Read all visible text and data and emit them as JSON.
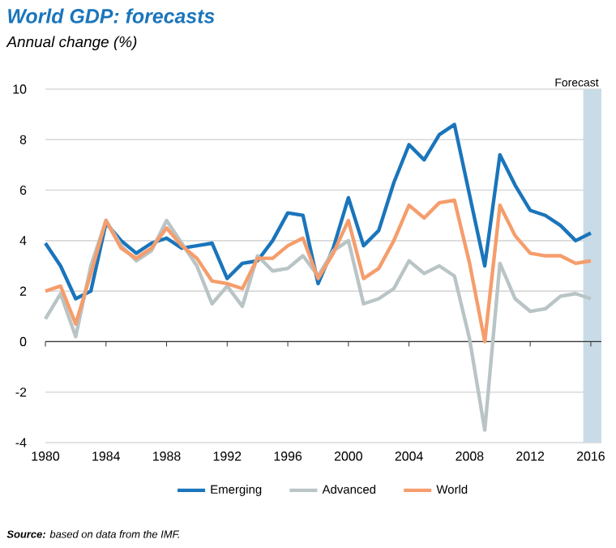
{
  "chart_data": {
    "type": "line",
    "title": "World GDP: forecasts",
    "subtitle": "Annual change (%)",
    "x": [
      1980,
      1981,
      1982,
      1983,
      1984,
      1985,
      1986,
      1987,
      1988,
      1989,
      1990,
      1991,
      1992,
      1993,
      1994,
      1995,
      1996,
      1997,
      1998,
      1999,
      2000,
      2001,
      2002,
      2003,
      2004,
      2005,
      2006,
      2007,
      2008,
      2009,
      2010,
      2011,
      2012,
      2013,
      2014,
      2015,
      2016
    ],
    "series": [
      {
        "name": "Emerging",
        "color": "#1a75bb",
        "values": [
          3.9,
          3.0,
          1.7,
          2.0,
          4.7,
          4.0,
          3.5,
          3.9,
          4.1,
          3.7,
          3.8,
          3.9,
          2.5,
          3.1,
          3.2,
          4.0,
          5.1,
          5.0,
          2.3,
          3.7,
          5.7,
          3.8,
          4.4,
          6.3,
          7.8,
          7.2,
          8.2,
          8.6,
          5.8,
          3.0,
          7.4,
          6.2,
          5.2,
          5.0,
          4.6,
          4.0,
          4.3
        ]
      },
      {
        "name": "Advanced",
        "color": "#b9c4c6",
        "values": [
          0.9,
          1.9,
          0.2,
          3.0,
          4.8,
          3.8,
          3.2,
          3.6,
          4.8,
          3.9,
          3.0,
          1.5,
          2.2,
          1.4,
          3.4,
          2.8,
          2.9,
          3.4,
          2.6,
          3.6,
          4.0,
          1.5,
          1.7,
          2.1,
          3.2,
          2.7,
          3.0,
          2.6,
          0.1,
          -3.5,
          3.1,
          1.7,
          1.2,
          1.3,
          1.8,
          1.9,
          1.7
        ]
      },
      {
        "name": "World",
        "color": "#f59d6c",
        "values": [
          2.0,
          2.2,
          0.7,
          2.7,
          4.8,
          3.7,
          3.3,
          3.7,
          4.5,
          3.8,
          3.3,
          2.4,
          2.3,
          2.1,
          3.3,
          3.3,
          3.8,
          4.1,
          2.5,
          3.5,
          4.8,
          2.5,
          2.9,
          4.0,
          5.4,
          4.9,
          5.5,
          5.6,
          3.1,
          0.0,
          5.4,
          4.2,
          3.5,
          3.4,
          3.4,
          3.1,
          3.2
        ]
      }
    ],
    "xlim": [
      1980,
      2016.7
    ],
    "ylim": [
      -4,
      10
    ],
    "xticks": [
      1980,
      1984,
      1988,
      1992,
      1996,
      2000,
      2004,
      2008,
      2012,
      2016
    ],
    "yticks": [
      -4,
      -2,
      0,
      2,
      4,
      6,
      8,
      10
    ],
    "bands": [
      {
        "axis": "x",
        "from": 2015.5,
        "to": 2016.7,
        "label": "Forecast",
        "color": "#c9dbe6"
      }
    ],
    "grid": "y",
    "legend": "bottom",
    "marker": "none",
    "line_style": "solid",
    "annotations": [
      "**Source:** based on data from the IMF."
    ]
  }
}
